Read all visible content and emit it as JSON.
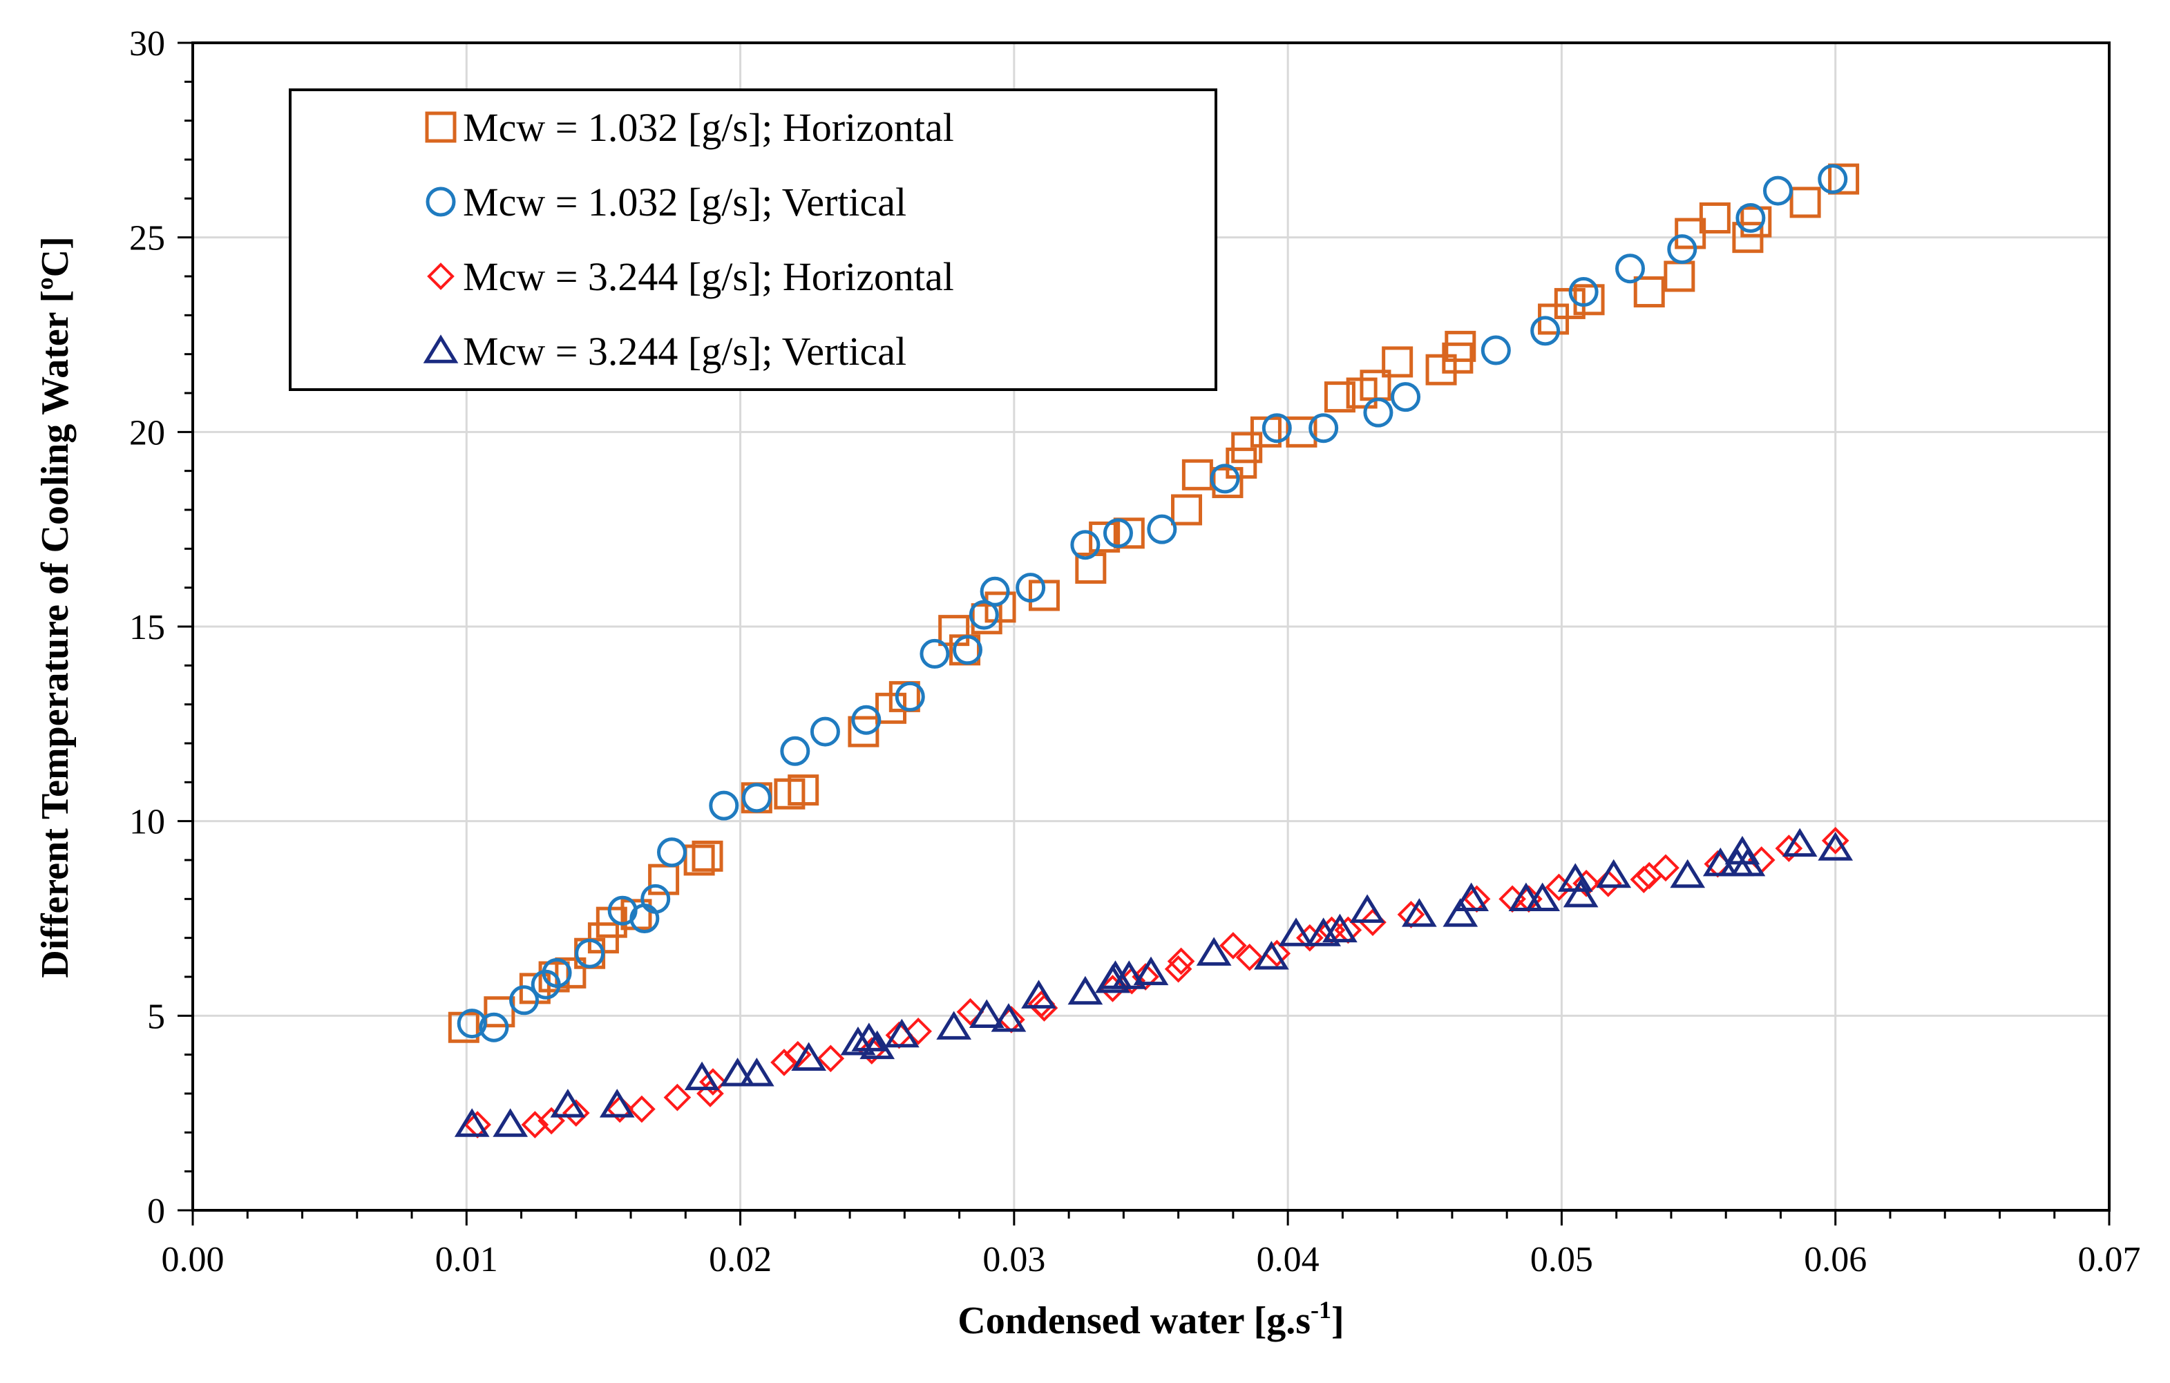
{
  "chart_data": {
    "type": "scatter",
    "xlabel": "Condensed water [g.s",
    "xlabel_sup": "-1",
    "xlabel_suffix": "]",
    "ylabel": "Different Temperature of Cooling Water [ºC]",
    "xlim": [
      0,
      0.07
    ],
    "ylim": [
      0,
      30
    ],
    "xticks": [
      "0.00",
      "0.01",
      "0.02",
      "0.03",
      "0.04",
      "0.05",
      "0.06",
      "0.07"
    ],
    "yticks": [
      "0",
      "5",
      "10",
      "15",
      "20",
      "25",
      "30"
    ],
    "grid": true,
    "legend_position": "top-left",
    "series": [
      {
        "name": "Mcw = 1.032 [g/s]; Horizontal",
        "marker": "square",
        "color": "#D9661F",
        "points": [
          [
            0.0099,
            4.7
          ],
          [
            0.0112,
            5.1
          ],
          [
            0.0125,
            5.7
          ],
          [
            0.0132,
            6.0
          ],
          [
            0.0138,
            6.1
          ],
          [
            0.0145,
            6.6
          ],
          [
            0.015,
            7.0
          ],
          [
            0.0153,
            7.4
          ],
          [
            0.0162,
            7.6
          ],
          [
            0.0172,
            8.5
          ],
          [
            0.0185,
            9.0
          ],
          [
            0.0188,
            9.1
          ],
          [
            0.0206,
            10.6
          ],
          [
            0.0218,
            10.7
          ],
          [
            0.0223,
            10.8
          ],
          [
            0.0245,
            12.3
          ],
          [
            0.0255,
            12.9
          ],
          [
            0.026,
            13.2
          ],
          [
            0.0278,
            14.9
          ],
          [
            0.0282,
            14.4
          ],
          [
            0.029,
            15.2
          ],
          [
            0.0295,
            15.5
          ],
          [
            0.0311,
            15.8
          ],
          [
            0.0328,
            16.5
          ],
          [
            0.0333,
            17.3
          ],
          [
            0.0342,
            17.4
          ],
          [
            0.0363,
            18.0
          ],
          [
            0.0367,
            18.9
          ],
          [
            0.0378,
            18.7
          ],
          [
            0.0383,
            19.2
          ],
          [
            0.0385,
            19.6
          ],
          [
            0.0392,
            20.0
          ],
          [
            0.0405,
            20.0
          ],
          [
            0.0419,
            20.9
          ],
          [
            0.0427,
            21.0
          ],
          [
            0.0432,
            21.2
          ],
          [
            0.044,
            21.8
          ],
          [
            0.0456,
            21.6
          ],
          [
            0.0462,
            21.9
          ],
          [
            0.0463,
            22.2
          ],
          [
            0.0497,
            22.9
          ],
          [
            0.0503,
            23.3
          ],
          [
            0.051,
            23.4
          ],
          [
            0.0532,
            23.6
          ],
          [
            0.0543,
            24.0
          ],
          [
            0.0547,
            25.1
          ],
          [
            0.0556,
            25.5
          ],
          [
            0.0568,
            25.0
          ],
          [
            0.0571,
            25.4
          ],
          [
            0.0589,
            25.9
          ],
          [
            0.0603,
            26.5
          ]
        ]
      },
      {
        "name": "Mcw = 1.032 [g/s]; Vertical",
        "marker": "circle",
        "color": "#1F7BC0",
        "points": [
          [
            0.0102,
            4.8
          ],
          [
            0.011,
            4.7
          ],
          [
            0.0121,
            5.4
          ],
          [
            0.0129,
            5.8
          ],
          [
            0.0133,
            6.1
          ],
          [
            0.0145,
            6.6
          ],
          [
            0.0157,
            7.7
          ],
          [
            0.0165,
            7.5
          ],
          [
            0.0169,
            8.0
          ],
          [
            0.0175,
            9.2
          ],
          [
            0.0194,
            10.4
          ],
          [
            0.0206,
            10.6
          ],
          [
            0.022,
            11.8
          ],
          [
            0.0231,
            12.3
          ],
          [
            0.0246,
            12.6
          ],
          [
            0.0262,
            13.2
          ],
          [
            0.0271,
            14.3
          ],
          [
            0.0283,
            14.4
          ],
          [
            0.0289,
            15.3
          ],
          [
            0.0293,
            15.9
          ],
          [
            0.0306,
            16.0
          ],
          [
            0.0326,
            17.1
          ],
          [
            0.0338,
            17.4
          ],
          [
            0.0354,
            17.5
          ],
          [
            0.0377,
            18.8
          ],
          [
            0.0396,
            20.1
          ],
          [
            0.0413,
            20.1
          ],
          [
            0.0433,
            20.5
          ],
          [
            0.0443,
            20.9
          ],
          [
            0.0476,
            22.1
          ],
          [
            0.0494,
            22.6
          ],
          [
            0.0508,
            23.6
          ],
          [
            0.0525,
            24.2
          ],
          [
            0.0544,
            24.7
          ],
          [
            0.0569,
            25.5
          ],
          [
            0.0579,
            26.2
          ],
          [
            0.0599,
            26.5
          ]
        ]
      },
      {
        "name": "Mcw = 3.244 [g/s]; Horizontal",
        "marker": "diamond",
        "color": "#FF1A1A",
        "points": [
          [
            0.0104,
            2.2
          ],
          [
            0.0125,
            2.2
          ],
          [
            0.0131,
            2.3
          ],
          [
            0.014,
            2.5
          ],
          [
            0.0156,
            2.6
          ],
          [
            0.0164,
            2.6
          ],
          [
            0.0177,
            2.9
          ],
          [
            0.0189,
            3.0
          ],
          [
            0.019,
            3.3
          ],
          [
            0.0216,
            3.8
          ],
          [
            0.0221,
            4.0
          ],
          [
            0.0233,
            3.9
          ],
          [
            0.0248,
            4.1
          ],
          [
            0.0258,
            4.5
          ],
          [
            0.0265,
            4.6
          ],
          [
            0.0284,
            5.1
          ],
          [
            0.0299,
            4.9
          ],
          [
            0.031,
            5.3
          ],
          [
            0.0311,
            5.2
          ],
          [
            0.0336,
            5.7
          ],
          [
            0.0343,
            5.9
          ],
          [
            0.0348,
            6.0
          ],
          [
            0.036,
            6.2
          ],
          [
            0.0361,
            6.4
          ],
          [
            0.038,
            6.8
          ],
          [
            0.0386,
            6.5
          ],
          [
            0.0396,
            6.6
          ],
          [
            0.0408,
            7.0
          ],
          [
            0.0416,
            7.2
          ],
          [
            0.0422,
            7.2
          ],
          [
            0.0431,
            7.4
          ],
          [
            0.0445,
            7.6
          ],
          [
            0.0469,
            8.0
          ],
          [
            0.0482,
            8.0
          ],
          [
            0.0488,
            8.0
          ],
          [
            0.0499,
            8.3
          ],
          [
            0.0509,
            8.4
          ],
          [
            0.0517,
            8.4
          ],
          [
            0.053,
            8.5
          ],
          [
            0.0532,
            8.6
          ],
          [
            0.0538,
            8.8
          ],
          [
            0.0557,
            8.9
          ],
          [
            0.0573,
            9.0
          ],
          [
            0.0583,
            9.3
          ],
          [
            0.06,
            9.5
          ]
        ]
      },
      {
        "name": "Mcw = 3.244 [g/s]; Vertical",
        "marker": "triangle",
        "color": "#1A2A80",
        "points": [
          [
            0.0102,
            2.2
          ],
          [
            0.0116,
            2.2
          ],
          [
            0.0137,
            2.7
          ],
          [
            0.0155,
            2.7
          ],
          [
            0.0186,
            3.4
          ],
          [
            0.0199,
            3.5
          ],
          [
            0.0206,
            3.5
          ],
          [
            0.0225,
            3.9
          ],
          [
            0.0243,
            4.3
          ],
          [
            0.0247,
            4.4
          ],
          [
            0.025,
            4.2
          ],
          [
            0.0259,
            4.5
          ],
          [
            0.0278,
            4.7
          ],
          [
            0.029,
            5.0
          ],
          [
            0.0298,
            4.9
          ],
          [
            0.0309,
            5.5
          ],
          [
            0.0326,
            5.6
          ],
          [
            0.0336,
            5.9
          ],
          [
            0.0337,
            6.0
          ],
          [
            0.0342,
            6.0
          ],
          [
            0.035,
            6.1
          ],
          [
            0.0373,
            6.6
          ],
          [
            0.0394,
            6.5
          ],
          [
            0.0403,
            7.1
          ],
          [
            0.0413,
            7.1
          ],
          [
            0.0419,
            7.2
          ],
          [
            0.0429,
            7.7
          ],
          [
            0.0448,
            7.6
          ],
          [
            0.0463,
            7.6
          ],
          [
            0.0467,
            8.0
          ],
          [
            0.0487,
            8.0
          ],
          [
            0.0493,
            8.0
          ],
          [
            0.0505,
            8.5
          ],
          [
            0.0507,
            8.1
          ],
          [
            0.0519,
            8.6
          ],
          [
            0.0546,
            8.6
          ],
          [
            0.0558,
            8.9
          ],
          [
            0.0564,
            8.9
          ],
          [
            0.0566,
            9.2
          ],
          [
            0.0568,
            8.9
          ],
          [
            0.0587,
            9.4
          ],
          [
            0.06,
            9.3
          ]
        ]
      }
    ]
  }
}
